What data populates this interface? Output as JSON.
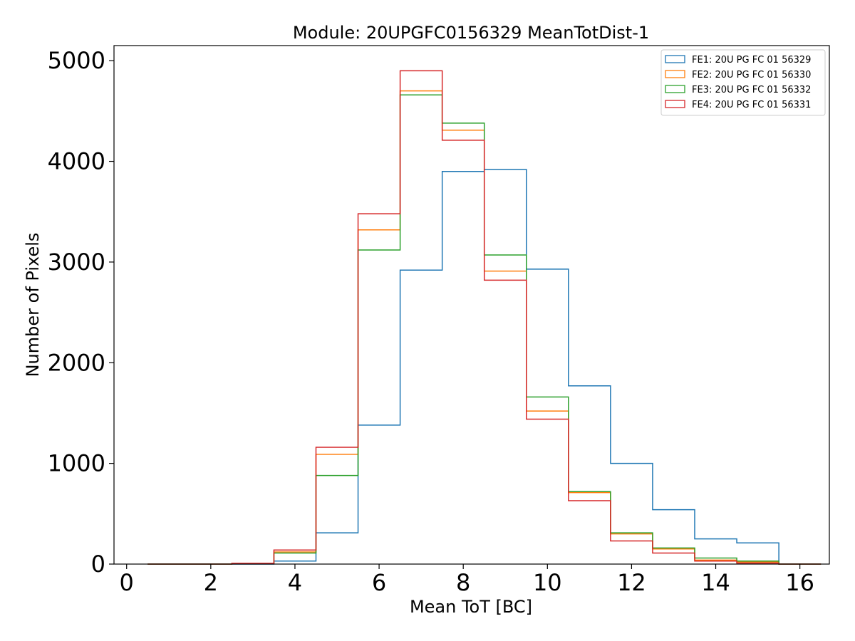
{
  "chart_data": {
    "type": "histogram",
    "title": "Module: 20UPGFC0156329 MeanTotDist-1",
    "xlabel": "Mean ToT [BC]",
    "ylabel": "Number of Pixels",
    "xlim": [
      -0.3,
      16.7
    ],
    "ylim": [
      0,
      5150
    ],
    "xticks": [
      0,
      2,
      4,
      6,
      8,
      10,
      12,
      14,
      16
    ],
    "yticks": [
      0,
      1000,
      2000,
      3000,
      4000,
      5000
    ],
    "legend_position": "top-right",
    "bin_edges": [
      0.5,
      1.5,
      2.5,
      3.5,
      4.5,
      5.5,
      6.5,
      7.5,
      8.5,
      9.5,
      10.5,
      11.5,
      12.5,
      13.5,
      14.5,
      15.5,
      16.5
    ],
    "series": [
      {
        "name": "FE1: 20U PG FC 01 56329",
        "color": "#1f77b4",
        "values": [
          0,
          0,
          0,
          30,
          310,
          1380,
          2920,
          3900,
          3920,
          2930,
          1770,
          1000,
          540,
          250,
          210,
          0
        ]
      },
      {
        "name": "FE2: 20U PG FC 01 56330",
        "color": "#ff7f0e",
        "values": [
          0,
          0,
          5,
          120,
          1090,
          3320,
          4700,
          4310,
          2910,
          1520,
          710,
          300,
          150,
          40,
          20,
          0
        ]
      },
      {
        "name": "FE3: 20U PG FC 01 56332",
        "color": "#2ca02c",
        "values": [
          0,
          0,
          5,
          110,
          880,
          3120,
          4660,
          4380,
          3070,
          1660,
          720,
          310,
          160,
          60,
          30,
          0
        ]
      },
      {
        "name": "FE4: 20U PG FC 01 56331",
        "color": "#d62728",
        "values": [
          0,
          0,
          8,
          140,
          1160,
          3480,
          4900,
          4210,
          2820,
          1440,
          630,
          230,
          110,
          30,
          10,
          0
        ]
      }
    ]
  }
}
